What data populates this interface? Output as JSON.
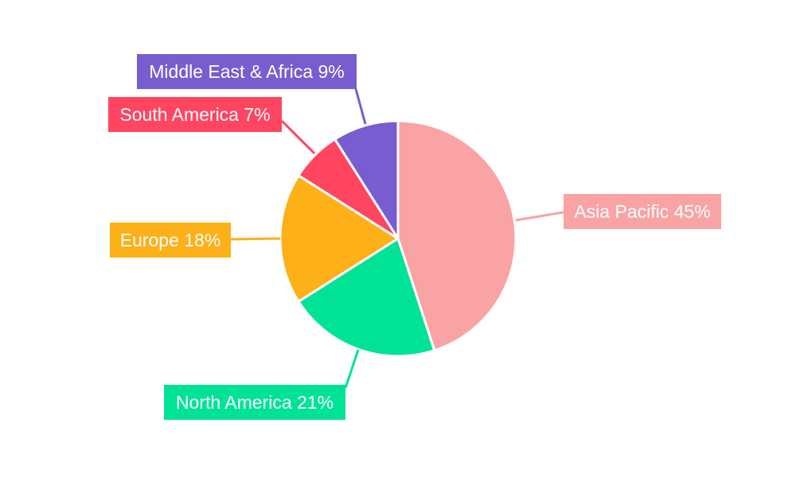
{
  "chart_data": {
    "type": "pie",
    "title": "",
    "start_angle": "12 o'clock, clockwise",
    "slices": [
      {
        "label": "Asia Pacific",
        "value": 45,
        "text": "Asia Pacific 45%",
        "color": "#F9A3A4"
      },
      {
        "label": "North America",
        "value": 21,
        "text": "North America 21%",
        "color": "#00E396"
      },
      {
        "label": "Europe",
        "value": 18,
        "text": "Europe 18%",
        "color": "#FEB019"
      },
      {
        "label": "South America",
        "value": 7,
        "text": "South America 7%",
        "color": "#FF4560"
      },
      {
        "label": "Middle East & Africa",
        "value": 9,
        "text": "Middle East & Africa 9%",
        "color": "#775DD0"
      }
    ],
    "legend": "none",
    "label_style": "outside callout boxes with leader lines"
  }
}
